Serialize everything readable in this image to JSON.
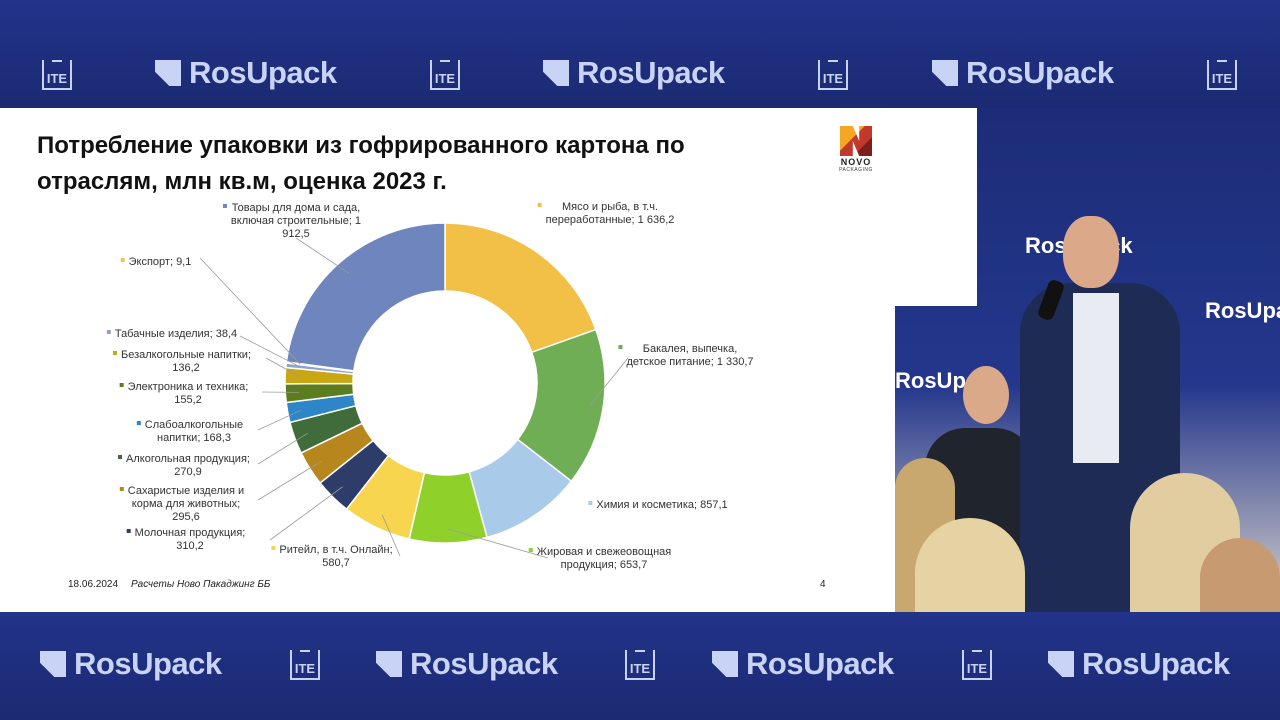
{
  "brand": {
    "name": "RosUpack",
    "ite": "ITE"
  },
  "slide": {
    "title_line1": "Потребление упаковки из гофрированного картона по",
    "title_line2": "отраслям, млн кв.м, оценка 2023 г.",
    "logo_text": "NOVO",
    "logo_sub": "PACKAGING",
    "date": "18.06.2024",
    "source": "Расчеты Ново Пакаджинг ББ",
    "page": "4"
  },
  "chart_data": {
    "type": "pie",
    "donut": true,
    "title": "Потребление упаковки из гофрированного картона по отраслям, млн кв.м, оценка 2023 г.",
    "legend": "none",
    "slices": [
      {
        "name": "Мясо и рыба, в т.ч. переработанные",
        "value": 1636.2,
        "label": [
          "Мясо и рыба, в т.ч.",
          "переработанные; 1 636,2"
        ],
        "color": "#f2bf47"
      },
      {
        "name": "Бакалея, выпечка, детское питание",
        "value": 1330.7,
        "label": [
          "Бакалея, выпечка,",
          "детское питание; 1 330,7"
        ],
        "color": "#6fae55"
      },
      {
        "name": "Химия и косметика",
        "value": 857.1,
        "label": [
          "Химия и косметика;  857,1"
        ],
        "color": "#a9cbe9"
      },
      {
        "name": "Жировая и свежеовощная продукция",
        "value": 653.7,
        "label": [
          "Жировая и свежеовощная",
          "продукция;  653,7"
        ],
        "color": "#8fd12a"
      },
      {
        "name": "Ритейл, в т.ч. Онлайн",
        "value": 580.7,
        "label": [
          "Ритейл, в т.ч. Онлайн;",
          "580,7"
        ],
        "color": "#f7d54f"
      },
      {
        "name": "Молочная продукция",
        "value": 310.2,
        "label": [
          "Молочная продукция;",
          "310,2"
        ],
        "color": "#2e3c6a"
      },
      {
        "name": "Сахаристые изделия и корма для животных",
        "value": 295.6,
        "label": [
          "Сахаристые изделия и",
          "корма для животных;",
          "295,6"
        ],
        "color": "#b7861d"
      },
      {
        "name": "Алкогольная продукция",
        "value": 270.9,
        "label": [
          "Алкогольная продукция;",
          "270,9"
        ],
        "color": "#3f6c3a"
      },
      {
        "name": "Слабоалкогольные напитки",
        "value": 168.3,
        "label": [
          "Слабоалкогольные",
          "напитки;  168,3"
        ],
        "color": "#2e86c8"
      },
      {
        "name": "Электроника и техника",
        "value": 155.2,
        "label": [
          "Электроника и техника;",
          "155,2"
        ],
        "color": "#5c7d1d"
      },
      {
        "name": "Безалкогольные напитки",
        "value": 136.2,
        "label": [
          "Безалкогольные напитки;",
          "136,2"
        ],
        "color": "#c8a712"
      },
      {
        "name": "Табачные изделия",
        "value": 38.4,
        "label": [
          "Табачные изделия;  38,4"
        ],
        "color": "#8fa4cc"
      },
      {
        "name": "Экспорт",
        "value": 9.1,
        "label": [
          "Экспорт;  9,1"
        ],
        "color": "#f0c560"
      },
      {
        "name": "Товары для дома и сада, включая строительные",
        "value": 1912.5,
        "label": [
          "Товары для дома и сада,",
          "включая строительные; 1",
          "912,5"
        ],
        "color": "#6e85bd"
      }
    ]
  }
}
